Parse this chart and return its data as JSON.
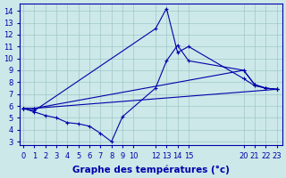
{
  "background_color": "#cce8e8",
  "line_color": "#0000aa",
  "grid_color": "#a0c8c8",
  "xlabel": "Graphe des températures (°c)",
  "xlabel_fontsize": 7.5,
  "tick_fontsize": 6,
  "series": [
    {
      "x": [
        0,
        1,
        23
      ],
      "y": [
        5.8,
        5.8,
        7.4
      ]
    },
    {
      "x": [
        0,
        1,
        20,
        21,
        22,
        23
      ],
      "y": [
        5.8,
        5.8,
        9.0,
        7.8,
        7.5,
        7.4
      ]
    },
    {
      "x": [
        0,
        1,
        2,
        3,
        4,
        5,
        6,
        7,
        8,
        9,
        12,
        13,
        14,
        15,
        20,
        21,
        22,
        23
      ],
      "y": [
        5.8,
        5.5,
        5.2,
        5.0,
        4.6,
        4.5,
        4.3,
        3.7,
        3.0,
        5.1,
        7.5,
        9.8,
        11.1,
        9.8,
        9.0,
        7.8,
        7.5,
        7.4
      ]
    },
    {
      "x": [
        0,
        1,
        12,
        13,
        14,
        15,
        20,
        21,
        22,
        23
      ],
      "y": [
        5.8,
        5.6,
        12.5,
        14.2,
        10.5,
        11.0,
        8.3,
        7.7,
        7.5,
        7.4
      ]
    }
  ],
  "xlim": [
    -0.3,
    23.5
  ],
  "ylim": [
    2.7,
    14.6
  ],
  "yticks": [
    3,
    4,
    5,
    6,
    7,
    8,
    9,
    10,
    11,
    12,
    13,
    14
  ],
  "xticks": [
    0,
    1,
    2,
    3,
    4,
    5,
    6,
    7,
    8,
    9,
    10,
    12,
    13,
    14,
    15,
    20,
    21,
    22,
    23
  ]
}
